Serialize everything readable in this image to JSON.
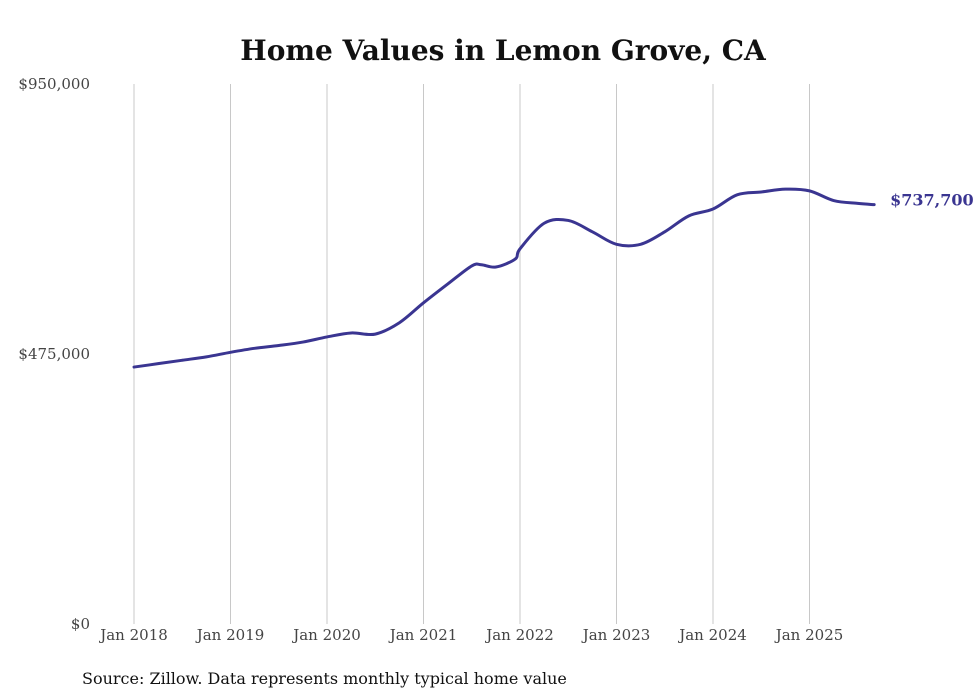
{
  "chart_data": {
    "type": "line",
    "title": "Home Values in Lemon Grove, CA",
    "xlabel": "",
    "ylabel": "",
    "ylim": [
      0,
      950000
    ],
    "yticks": [
      {
        "value": 0,
        "label": "$0"
      },
      {
        "value": 475000,
        "label": "$475,000"
      },
      {
        "value": 950000,
        "label": "$950,000"
      }
    ],
    "xlim": [
      2018.0,
      2025.75
    ],
    "xticks": [
      {
        "value": 2018,
        "label": "Jan 2018"
      },
      {
        "value": 2019,
        "label": "Jan 2019"
      },
      {
        "value": 2020,
        "label": "Jan 2020"
      },
      {
        "value": 2021,
        "label": "Jan 2021"
      },
      {
        "value": 2022,
        "label": "Jan 2022"
      },
      {
        "value": 2023,
        "label": "Jan 2023"
      },
      {
        "value": 2024,
        "label": "Jan 2024"
      },
      {
        "value": 2025,
        "label": "Jan 2025"
      }
    ],
    "grid": "vertical",
    "series": [
      {
        "name": "Typical home value",
        "color": "#3a3591",
        "x": [
          2018.0,
          2018.25,
          2018.5,
          2018.75,
          2019.0,
          2019.25,
          2019.5,
          2019.75,
          2020.0,
          2020.25,
          2020.5,
          2020.75,
          2021.0,
          2021.25,
          2021.5,
          2021.6,
          2021.75,
          2021.95,
          2022.0,
          2022.25,
          2022.5,
          2022.75,
          2023.0,
          2023.25,
          2023.5,
          2023.75,
          2024.0,
          2024.25,
          2024.5,
          2024.75,
          2025.0,
          2025.25,
          2025.5,
          2025.67
        ],
        "values": [
          452000,
          458000,
          464000,
          470000,
          478000,
          485000,
          490000,
          496000,
          505000,
          512000,
          510000,
          530000,
          565000,
          598000,
          630000,
          632000,
          628000,
          642000,
          660000,
          705000,
          710000,
          690000,
          668000,
          668000,
          690000,
          718000,
          730000,
          755000,
          760000,
          765000,
          762000,
          745000,
          740000,
          737700
        ]
      }
    ],
    "end_label": "$737,700"
  },
  "footer": {
    "source": "Source: Zillow. Data represents monthly typical home value"
  }
}
